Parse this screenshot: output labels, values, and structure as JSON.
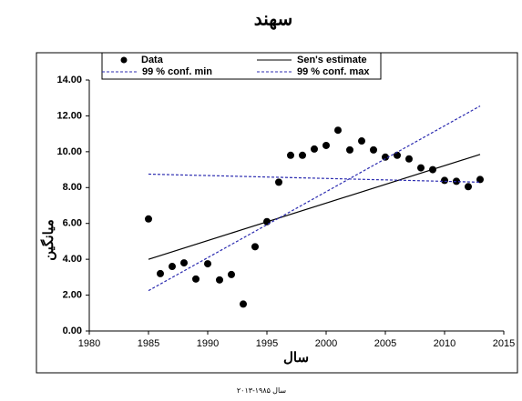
{
  "chart_data": {
    "type": "scatter",
    "title": "سهند",
    "caption": "سال ۱۹۸۵-۲۰۱۳",
    "xlabel": "سال",
    "ylabel": "میانگین",
    "xlim": [
      1980,
      2015
    ],
    "xticks": [
      1980,
      1985,
      1990,
      1995,
      2000,
      2005,
      2010,
      2015
    ],
    "ylim": [
      0,
      14
    ],
    "yticks": [
      {
        "value": 0,
        "label": "0.00"
      },
      {
        "value": 2,
        "label": "2.00"
      },
      {
        "value": 4,
        "label": "4.00"
      },
      {
        "value": 6,
        "label": "6.00"
      },
      {
        "value": 8,
        "label": "8.00"
      },
      {
        "value": 10,
        "label": "10.00"
      },
      {
        "value": 12,
        "label": "12.00"
      },
      {
        "value": 14,
        "label": "14.00"
      }
    ],
    "series": [
      {
        "name": "Data",
        "mode": "markers",
        "color": "#000000",
        "x": [
          1985,
          1986,
          1987,
          1988,
          1989,
          1990,
          1991,
          1992,
          1993,
          1994,
          1995,
          1996,
          1997,
          1998,
          1999,
          2000,
          2001,
          2002,
          2003,
          2004,
          2005,
          2006,
          2007,
          2008,
          2009,
          2010,
          2011,
          2012,
          2013
        ],
        "values": [
          6.25,
          3.2,
          3.6,
          3.8,
          2.9,
          3.75,
          2.85,
          3.15,
          1.5,
          4.7,
          6.1,
          8.3,
          9.8,
          9.8,
          10.15,
          10.35,
          11.2,
          10.1,
          10.6,
          10.1,
          9.7,
          9.8,
          9.6,
          9.1,
          9.0,
          8.4,
          8.35,
          8.05,
          8.45
        ]
      },
      {
        "name": "Sen's estimate",
        "mode": "line",
        "dashed": false,
        "color": "#000000",
        "x": [
          1985,
          2013
        ],
        "values": [
          4.0,
          9.85
        ]
      },
      {
        "name": "99 % conf. min",
        "mode": "line",
        "dashed": true,
        "color": "#2b2bb0",
        "x": [
          1985,
          2013
        ],
        "values": [
          2.25,
          12.55
        ]
      },
      {
        "name": "99 % conf. max",
        "mode": "line",
        "dashed": true,
        "color": "#2b2bb0",
        "x": [
          1985,
          2013
        ],
        "values": [
          8.75,
          8.3
        ]
      }
    ]
  }
}
